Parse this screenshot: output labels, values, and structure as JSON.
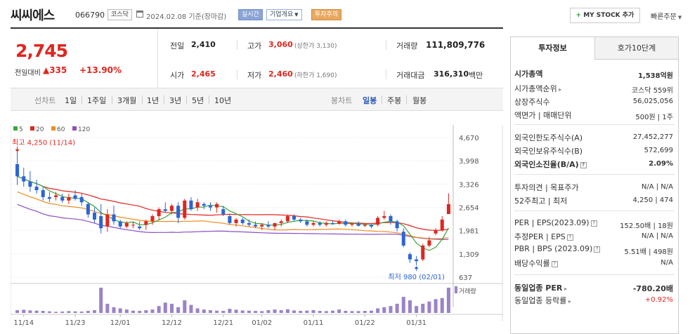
{
  "header": {
    "title": "씨씨에스",
    "code": "066790",
    "market": "코스닥",
    "base_date": "2024.02.08 기준(장마감)",
    "realtime": "실시간",
    "corp_info": "기업개요",
    "invest_alert": "투자주의",
    "my_stock": "MY STOCK 추가",
    "quick_order": "빠른주문"
  },
  "quote": {
    "price": "2,745",
    "prev_label": "전일대비",
    "change": "335",
    "rate": "+13.90%",
    "prev_close_label": "전일",
    "prev_close": "2,410",
    "open_label": "시가",
    "open": "2,465",
    "high_label": "고가",
    "high": "3,060",
    "upper_limit": "(상한가 3,130)",
    "low_label": "저가",
    "low": "2,460",
    "lower_limit": "(하한가 1,690)",
    "volume_label": "거래량",
    "volume": "111,809,776",
    "amount_label": "거래대금",
    "amount": "316,310",
    "amount_unit": "백만"
  },
  "period": {
    "line_label": "선차트",
    "line_items": [
      "1일",
      "1주일",
      "3개월",
      "1년",
      "3년",
      "5년",
      "10년"
    ],
    "candle_label": "봉차트",
    "candle_items": [
      "일봉",
      "주봉",
      "월봉"
    ]
  },
  "chart_data": {
    "type": "candlestick",
    "legend": [
      {
        "name": "5",
        "color": "#3aa53a"
      },
      {
        "name": "20",
        "color": "#e0261f"
      },
      {
        "name": "60",
        "color": "#f08c1e"
      },
      {
        "name": "120",
        "color": "#8a4fc7"
      }
    ],
    "y_ticks": [
      "4,670",
      "3,998",
      "3,326",
      "2,654",
      "1,981",
      "1,309",
      "637"
    ],
    "ylim": [
      637,
      4670
    ],
    "x_ticks": [
      "11/14",
      "11/23",
      "12/01",
      "12/12",
      "12/21",
      "01/02",
      "01/11",
      "01/22",
      "01/31"
    ],
    "max_label": "최고 4,250 (11/14)",
    "min_label": "최저 980 (02/01)",
    "volume_label": "거래량",
    "candles": [
      [
        3900,
        4250,
        3300,
        3550
      ],
      [
        3550,
        3800,
        3250,
        3400
      ],
      [
        3400,
        3700,
        3100,
        3250
      ],
      [
        3250,
        3450,
        3050,
        3150
      ],
      [
        3150,
        3250,
        2850,
        2950
      ],
      [
        2950,
        3100,
        2800,
        2900
      ],
      [
        2950,
        3100,
        2850,
        3000
      ],
      [
        2950,
        3050,
        2780,
        2850
      ],
      [
        2850,
        3050,
        2750,
        2950
      ],
      [
        3000,
        3150,
        2850,
        2900
      ],
      [
        2950,
        3050,
        2700,
        2800
      ],
      [
        2750,
        2800,
        2350,
        2450
      ],
      [
        2500,
        2650,
        2200,
        2300
      ],
      [
        2400,
        2750,
        1900,
        2050
      ],
      [
        2100,
        2600,
        1950,
        2450
      ],
      [
        2450,
        2700,
        2150,
        2250
      ],
      [
        2250,
        2300,
        2050,
        2100
      ],
      [
        2100,
        2250,
        2050,
        2200
      ],
      [
        2150,
        2250,
        2050,
        2150
      ],
      [
        2100,
        2250,
        2000,
        2050
      ],
      [
        2150,
        2300,
        2000,
        2250
      ],
      [
        2250,
        2450,
        2150,
        2400
      ],
      [
        2400,
        2650,
        2300,
        2600
      ],
      [
        2600,
        2800,
        2500,
        2550
      ],
      [
        2550,
        2750,
        2450,
        2700
      ],
      [
        2700,
        2800,
        2200,
        2350
      ],
      [
        2350,
        2900,
        2300,
        2850
      ],
      [
        2850,
        2950,
        2550,
        2600
      ],
      [
        2650,
        2900,
        2550,
        2800
      ],
      [
        2750,
        2800,
        2600,
        2700
      ],
      [
        2700,
        2800,
        2550,
        2650
      ],
      [
        2650,
        2800,
        2500,
        2750
      ],
      [
        2600,
        2700,
        2400,
        2450
      ],
      [
        2400,
        2450,
        2150,
        2200
      ],
      [
        2200,
        2350,
        2100,
        2300
      ],
      [
        2300,
        2350,
        2150,
        2200
      ],
      [
        2200,
        2300,
        2100,
        2150
      ],
      [
        2150,
        2250,
        2050,
        2100
      ],
      [
        2100,
        2200,
        2000,
        2150
      ],
      [
        2150,
        2250,
        2050,
        2100
      ],
      [
        2100,
        2200,
        2000,
        2200
      ],
      [
        2200,
        2300,
        2100,
        2250
      ],
      [
        2250,
        2450,
        2200,
        2400
      ],
      [
        2400,
        2450,
        2250,
        2300
      ],
      [
        2300,
        2350,
        2200,
        2250
      ],
      [
        2250,
        2300,
        2100,
        2150
      ],
      [
        2150,
        2250,
        2100,
        2200
      ],
      [
        2200,
        2250,
        2100,
        2150
      ],
      [
        2150,
        2250,
        2100,
        2200
      ],
      [
        2200,
        2250,
        2150,
        2180
      ],
      [
        2180,
        2300,
        2150,
        2250
      ],
      [
        2250,
        2300,
        2100,
        2150
      ],
      [
        2150,
        2200,
        2100,
        2180
      ],
      [
        2180,
        2250,
        2100,
        2120
      ],
      [
        2120,
        2200,
        2080,
        2150
      ],
      [
        2150,
        2200,
        2050,
        2100
      ],
      [
        2150,
        2400,
        2100,
        2350
      ],
      [
        2350,
        2550,
        2300,
        2400
      ],
      [
        2400,
        2450,
        2150,
        2250
      ],
      [
        2250,
        2300,
        1950,
        2050
      ],
      [
        1950,
        2050,
        1500,
        1550
      ],
      [
        1300,
        1350,
        1050,
        1150
      ],
      [
        1150,
        1250,
        980,
        1100
      ],
      [
        1150,
        1600,
        1100,
        1550
      ],
      [
        1550,
        1800,
        1500,
        1700
      ],
      [
        1900,
        2050,
        1850,
        2000
      ],
      [
        2000,
        2400,
        1950,
        2300
      ],
      [
        2460,
        3060,
        2460,
        2745
      ]
    ],
    "volumes": [
      12,
      14,
      11,
      10,
      9,
      7,
      5,
      6,
      8,
      7,
      6,
      9,
      12,
      110,
      40,
      25,
      20,
      15,
      10,
      9,
      12,
      15,
      30,
      45,
      40,
      25,
      55,
      35,
      20,
      15,
      12,
      10,
      9,
      18,
      14,
      11,
      10,
      9,
      8,
      12,
      15,
      12,
      16,
      11,
      9,
      10,
      12,
      9,
      8,
      10,
      15,
      9,
      8,
      8,
      9,
      10,
      20,
      25,
      30,
      40,
      70,
      55,
      30,
      40,
      50,
      60,
      65,
      110
    ]
  },
  "panel": {
    "tab_invest": "투자정보",
    "tab_quote10": "호가10단계",
    "market_cap_label": "시가총액",
    "market_cap": "1,538억원",
    "market_cap_rank_label": "시가총액순위",
    "market_cap_rank": "코스닥 559위",
    "shares_label": "상장주식수",
    "shares": "56,025,056",
    "face_label": "액면가 | 매매단위",
    "face": "500원 | 1주",
    "foreign_limit_label": "외국인한도주식수(A)",
    "foreign_limit": "27,452,277",
    "foreign_hold_label": "외국인보유주식수(B)",
    "foreign_hold": "572,699",
    "foreign_rate_label": "외국인소진율(B/A)",
    "foreign_rate": "2.09%",
    "opinion_label": "투자의견 | 목표주가",
    "opinion": "N/A | N/A",
    "week52_label": "52주최고 | 최저",
    "week52": "4,250 | 474",
    "per_label": "PER | EPS(2023.09)",
    "per": "152.50배 | 18원",
    "est_per_label": "추정PER | EPS",
    "est_per": "N/A | N/A",
    "pbr_label": "PBR | BPS (2023.09)",
    "pbr": "5.51배 | 498원",
    "div_label": "배당수익률",
    "div": "N/A",
    "sector_per_label": "동일업종 PER",
    "sector_per": "-780.20배",
    "sector_rate_label": "동일업종 등락률",
    "sector_rate": "+0.92%"
  }
}
